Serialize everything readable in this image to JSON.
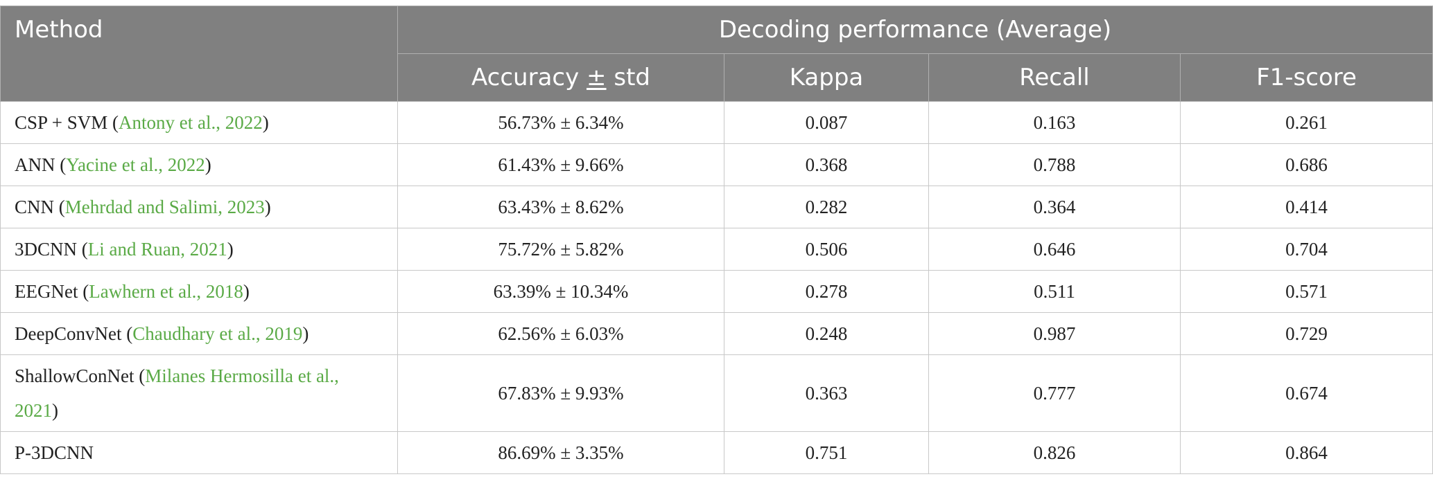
{
  "header": {
    "method": "Method",
    "group": "Decoding performance (Average)",
    "accuracy_prefix": "Accuracy ",
    "accuracy_pm": "±",
    "accuracy_suffix": " std",
    "kappa": "Kappa",
    "recall": "Recall",
    "f1": "F1-score"
  },
  "rows": [
    {
      "name": "CSP + SVM",
      "cite": "Antony et al., 2022",
      "accuracy": "56.73% ± 6.34%",
      "kappa": "0.087",
      "recall": "0.163",
      "f1": "0.261"
    },
    {
      "name": "ANN",
      "cite": "Yacine et al., 2022",
      "accuracy": "61.43% ± 9.66%",
      "kappa": "0.368",
      "recall": "0.788",
      "f1": "0.686"
    },
    {
      "name": "CNN",
      "cite": "Mehrdad and Salimi, 2023",
      "accuracy": "63.43% ± 8.62%",
      "kappa": "0.282",
      "recall": "0.364",
      "f1": "0.414"
    },
    {
      "name": "3DCNN",
      "cite": "Li and Ruan, 2021",
      "accuracy": "75.72% ± 5.82%",
      "kappa": "0.506",
      "recall": "0.646",
      "f1": "0.704"
    },
    {
      "name": "EEGNet",
      "cite": "Lawhern et al., 2018",
      "accuracy": "63.39% ± 10.34%",
      "kappa": "0.278",
      "recall": "0.511",
      "f1": "0.571"
    },
    {
      "name": "DeepConvNet",
      "cite": "Chaudhary et al., 2019",
      "accuracy": "62.56% ± 6.03%",
      "kappa": "0.248",
      "recall": "0.987",
      "f1": "0.729"
    },
    {
      "name": "ShallowConNet",
      "cite": "Milanes Hermosilla et al., 2021",
      "accuracy": "67.83% ± 9.93%",
      "kappa": "0.363",
      "recall": "0.777",
      "f1": "0.674"
    },
    {
      "name": "P-3DCNN",
      "cite": "",
      "accuracy": "86.69% ± 3.35%",
      "kappa": "0.751",
      "recall": "0.826",
      "f1": "0.864"
    }
  ],
  "colors": {
    "header_bg": "#808080",
    "header_text": "#ffffff",
    "citation_link": "#5aaa46"
  }
}
